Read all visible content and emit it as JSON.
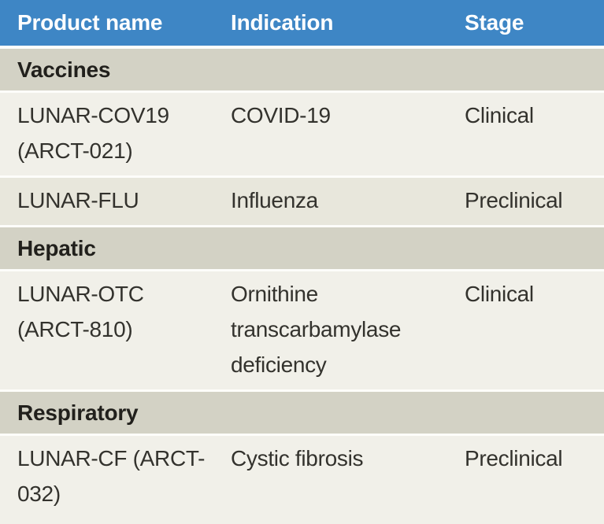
{
  "colors": {
    "header_background": "#3e86c5",
    "header_text": "#ffffff",
    "section_background": "#d3d2c5",
    "row_background": "#f1f0e9",
    "row_alt_background": "#e8e7dc",
    "separator": "#fdfdfa",
    "body_text": "#33322d",
    "bold_text": "#21201c"
  },
  "table": {
    "columns": [
      "Product name",
      "Indication",
      "Stage"
    ],
    "sections": [
      {
        "label": "Vaccines",
        "rows": [
          {
            "product": "LUNAR-COV19 (ARCT-021)",
            "indication": "COVID-19",
            "stage": "Clinical"
          },
          {
            "product": "LUNAR-FLU",
            "indication": "Influenza",
            "stage": "Preclinical"
          }
        ]
      },
      {
        "label": "Hepatic",
        "rows": [
          {
            "product": "LUNAR-OTC (ARCT-810)",
            "indication": "Ornithine transcarbamylase deficiency",
            "stage": "Clinical"
          }
        ]
      },
      {
        "label": "Respiratory",
        "rows": [
          {
            "product": "LUNAR-CF (ARCT-032)",
            "indication": "Cystic fibrosis",
            "stage": "Preclinical"
          }
        ]
      }
    ]
  },
  "chart_data": {
    "type": "table",
    "columns": [
      "Product name",
      "Indication",
      "Stage"
    ],
    "sections": [
      {
        "name": "Vaccines",
        "rows": [
          [
            "LUNAR-COV19 (ARCT-021)",
            "COVID-19",
            "Clinical"
          ],
          [
            "LUNAR-FLU",
            "Influenza",
            "Preclinical"
          ]
        ]
      },
      {
        "name": "Hepatic",
        "rows": [
          [
            "LUNAR-OTC (ARCT-810)",
            "Ornithine transcarbamylase deficiency",
            "Clinical"
          ]
        ]
      },
      {
        "name": "Respiratory",
        "rows": [
          [
            "LUNAR-CF (ARCT-032)",
            "Cystic fibrosis",
            "Preclinical"
          ]
        ]
      }
    ]
  }
}
